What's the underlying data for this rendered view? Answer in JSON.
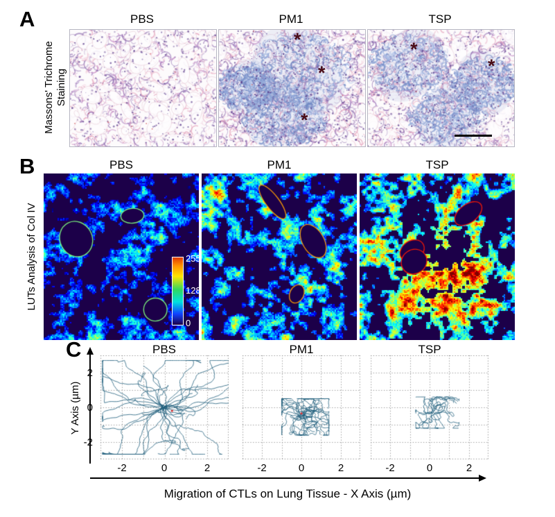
{
  "figure": {
    "panelA": {
      "label": "A",
      "row_label_line1": "Massons' Trichrome",
      "row_label_line2": "Staining",
      "columns": [
        "PBS",
        "PM1",
        "TSP"
      ],
      "asterisk": "*"
    },
    "panelB": {
      "label": "B",
      "row_label": "LUTs Analysis of Col IV",
      "columns": [
        "PBS",
        "PM1",
        "TSP"
      ],
      "colorbar_ticks": [
        "255",
        "128",
        "0"
      ]
    },
    "panelC": {
      "label": "C",
      "columns": [
        "PBS",
        "PM1",
        "TSP"
      ],
      "y_axis_label": "Y Axis (µm)",
      "x_axis_label": "Migration of CTLs on Lung Tissue - X Axis (µm)",
      "y_ticks": [
        "2",
        "0",
        "-2"
      ],
      "x_ticks": [
        "-2",
        "0",
        "2"
      ]
    }
  },
  "colors": {
    "heatmap_background": "#1c0049",
    "asterisk": "#4a0d18",
    "track_line": "#1a5a78"
  },
  "chart_data": {
    "panelC": [
      {
        "type": "line",
        "title": "PBS",
        "xlabel": "Migration of CTLs on Lung Tissue - X Axis (µm)",
        "ylabel": "Y Axis (µm)",
        "xlim": [
          -3,
          3
        ],
        "ylim": [
          -3,
          3
        ],
        "x_ticks": [
          -2,
          0,
          2
        ],
        "y_ticks": [
          2,
          0,
          -2
        ],
        "grid": "dotted",
        "n_tracks": 33,
        "track_extent_um": 2.5,
        "description": "CTL migration tracks radiate from the origin in all directions with excursions up to ~±2.5 µm"
      },
      {
        "type": "line",
        "title": "PM1",
        "xlabel": "Migration of CTLs on Lung Tissue - X Axis (µm)",
        "ylabel": "Y Axis (µm)",
        "xlim": [
          -3,
          3
        ],
        "ylim": [
          -3,
          3
        ],
        "x_ticks": [
          -2,
          0,
          2
        ],
        "y_ticks": [
          2,
          0,
          -2
        ],
        "grid": "dotted",
        "n_tracks": 26,
        "track_extent_um": 1.0,
        "description": "Tracks confined in a dense cluster near/below the origin within ~±1 µm"
      },
      {
        "type": "line",
        "title": "TSP",
        "xlabel": "Migration of CTLs on Lung Tissue - X Axis (µm)",
        "ylabel": "Y Axis (µm)",
        "xlim": [
          -3,
          3
        ],
        "ylim": [
          -3,
          3
        ],
        "x_ticks": [
          -2,
          0,
          2
        ],
        "y_ticks": [
          2,
          0,
          -2
        ],
        "grid": "dotted",
        "n_tracks": 17,
        "track_extent_um": 0.8,
        "description": "Tracks tightly clustered around the origin within ~±0.8 µm"
      }
    ],
    "panelB_lut": {
      "type": "heatmap",
      "colormap": "jet",
      "scale_min": 0,
      "scale_mid": 128,
      "scale_max": 255,
      "description": "Col IV LUT intensity increases from PBS to PM1 to TSP; red/orange high-intensity regions most abundant in TSP"
    }
  }
}
